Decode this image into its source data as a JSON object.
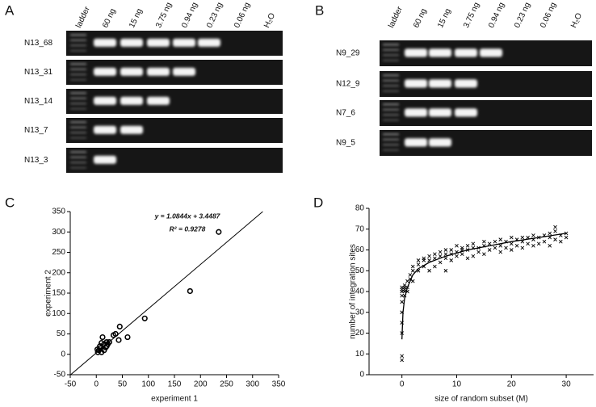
{
  "panel_labels": [
    "A",
    "B",
    "C",
    "D"
  ],
  "gel_a": {
    "lanes": [
      "ladder",
      "60 ng",
      "15 ng",
      "3.75 ng",
      "0.94 ng",
      "0.23 ng",
      "0.06 ng",
      "H₂O"
    ],
    "rows": [
      "N13_68",
      "N13_31",
      "N13_14",
      "N13_7",
      "N13_3"
    ]
  },
  "gel_b": {
    "lanes": [
      "ladder",
      "60 ng",
      "15 ng",
      "3.75 ng",
      "0.94 ng",
      "0.23 ng",
      "0.06 ng",
      "H₂O"
    ],
    "rows": [
      "N9_29",
      "N12_9",
      "N7_6",
      "N9_5"
    ]
  },
  "chart_data": [
    {
      "type": "scatter",
      "xlabel": "experiment 1",
      "ylabel": "experiment 2",
      "annotations": [
        "y = 1.0844x + 3.4487",
        "R² = 0.9278"
      ],
      "trendline": {
        "slope": 1.0844,
        "intercept": 3.4487
      },
      "marker": "o",
      "color": "#000000",
      "x": [
        235,
        180,
        93,
        60,
        45,
        43,
        37,
        33,
        22,
        20,
        18,
        15,
        12,
        10,
        8,
        5,
        3,
        10,
        2,
        20,
        25,
        15,
        7
      ],
      "values": [
        300,
        155,
        88,
        42,
        68,
        35,
        50,
        47,
        25,
        30,
        17,
        25,
        42,
        28,
        15,
        10,
        5,
        5,
        12,
        20,
        30,
        10,
        20
      ],
      "xlim": [
        -50,
        350
      ],
      "xticks": [
        -50,
        0,
        50,
        100,
        150,
        200,
        250,
        300,
        350
      ],
      "ylim": [
        -50,
        350
      ],
      "yticks": [
        -50,
        0,
        50,
        100,
        150,
        200,
        250,
        300,
        350
      ]
    },
    {
      "type": "scatter",
      "xlabel": "size of random subset (M)",
      "ylabel": "number of integration sites",
      "color": "#000000",
      "series": [
        {
          "marker": "x",
          "x": [
            0,
            0,
            0,
            0,
            0,
            0,
            0,
            0,
            0,
            0,
            0.5,
            0.5,
            0.5,
            0.5,
            0.5,
            1,
            1,
            1,
            1.5,
            1.5,
            2,
            2,
            2,
            3,
            3,
            3,
            4,
            4,
            4,
            5,
            5,
            5,
            6,
            6,
            6,
            7,
            7,
            7,
            8,
            8,
            8,
            8,
            9,
            9,
            9,
            10,
            10,
            10,
            11,
            11,
            11,
            12,
            12,
            12,
            13,
            13,
            13,
            14,
            14,
            15,
            15,
            15,
            16,
            16,
            17,
            17,
            18,
            18,
            18,
            19,
            19,
            20,
            20,
            20,
            21,
            21,
            22,
            22,
            22,
            23,
            23,
            24,
            24,
            24,
            25,
            25,
            26,
            26,
            27,
            27,
            27,
            28,
            28,
            28,
            29,
            29,
            30,
            30
          ],
          "values": [
            7,
            9,
            20,
            25,
            30,
            35,
            38,
            40,
            41,
            42,
            38,
            40,
            41,
            42,
            43,
            40,
            42,
            45,
            46,
            48,
            45,
            50,
            52,
            50,
            53,
            55,
            52,
            55,
            56,
            50,
            55,
            57,
            52,
            56,
            58,
            54,
            57,
            59,
            50,
            56,
            58,
            60,
            55,
            58,
            60,
            57,
            59,
            62,
            58,
            60,
            61,
            56,
            60,
            62,
            57,
            61,
            63,
            59,
            61,
            58,
            62,
            64,
            60,
            63,
            61,
            64,
            59,
            62,
            65,
            61,
            64,
            60,
            63,
            66,
            62,
            65,
            61,
            64,
            66,
            63,
            66,
            62,
            65,
            67,
            63,
            66,
            64,
            67,
            62,
            66,
            68,
            65,
            69,
            71,
            64,
            67,
            66,
            68
          ]
        },
        {
          "marker": "line",
          "x": [
            0,
            0.2,
            0.5,
            1,
            2,
            3,
            5,
            8,
            12,
            16,
            20,
            25,
            30
          ],
          "values": [
            17,
            30,
            37,
            42,
            48,
            51,
            54,
            57,
            60,
            62,
            64,
            66,
            68
          ]
        }
      ],
      "xlim": [
        -6,
        35
      ],
      "xticks": [
        0,
        10,
        20,
        30
      ],
      "ylim": [
        0,
        80
      ],
      "yticks": [
        0,
        10,
        20,
        30,
        40,
        50,
        60,
        70,
        80
      ]
    }
  ]
}
